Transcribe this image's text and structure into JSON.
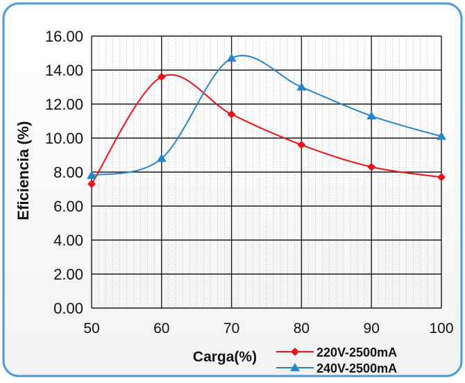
{
  "chart_data": {
    "type": "line",
    "xlabel": "Carga(%)",
    "ylabel": "Eficiencia (%)",
    "x_ticks": [
      "50",
      "60",
      "70",
      "80",
      "90",
      "100"
    ],
    "y_ticks": [
      "0.00",
      "2.00",
      "4.00",
      "6.00",
      "8.00",
      "10.00",
      "12.00",
      "14.00",
      "16.00"
    ],
    "xlim": [
      50,
      100
    ],
    "ylim": [
      0,
      16
    ],
    "grid": true,
    "legend_position": "bottom-right",
    "series": [
      {
        "name": "220V-2500mA",
        "color": "#e8141c",
        "marker": "diamond",
        "x": [
          50,
          60,
          70,
          80,
          90,
          100
        ],
        "y": [
          7.3,
          13.6,
          11.4,
          9.6,
          8.3,
          7.7
        ]
      },
      {
        "name": "240V-2500mA",
        "color": "#2a84c8",
        "marker": "triangle",
        "x": [
          50,
          60,
          70,
          80,
          90,
          100
        ],
        "y": [
          7.8,
          8.8,
          14.7,
          13.0,
          11.3,
          10.1
        ]
      }
    ]
  },
  "colors": {
    "frame_border": "#4a9ad6",
    "grid_major": "#1a1a1a",
    "grid_minor": "#bdbdbd"
  }
}
